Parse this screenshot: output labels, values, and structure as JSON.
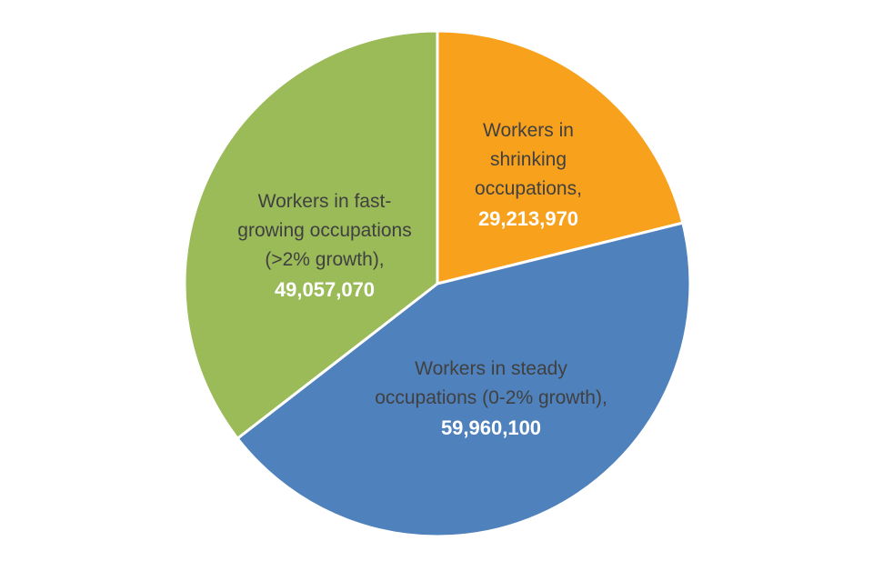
{
  "chart_data": {
    "type": "pie",
    "title": "",
    "start_angle": "12 o'clock",
    "direction": "clockwise",
    "slices": [
      {
        "label_lines": [
          "Workers in",
          "shrinking",
          "occupations,"
        ],
        "value_text": "29,213,970",
        "value": 29213970,
        "color": "#F7A11C"
      },
      {
        "label_lines": [
          "Workers in steady",
          "occupations (0-2% growth),"
        ],
        "value_text": "59,960,100",
        "value": 59960100,
        "color": "#4F81BD"
      },
      {
        "label_lines": [
          "Workers in fast-",
          "growing occupations",
          "(>2% growth),"
        ],
        "value_text": "49,057,070",
        "value": 49057070,
        "color": "#9BBB59"
      }
    ],
    "legend": "none (data labels inside slices)"
  }
}
